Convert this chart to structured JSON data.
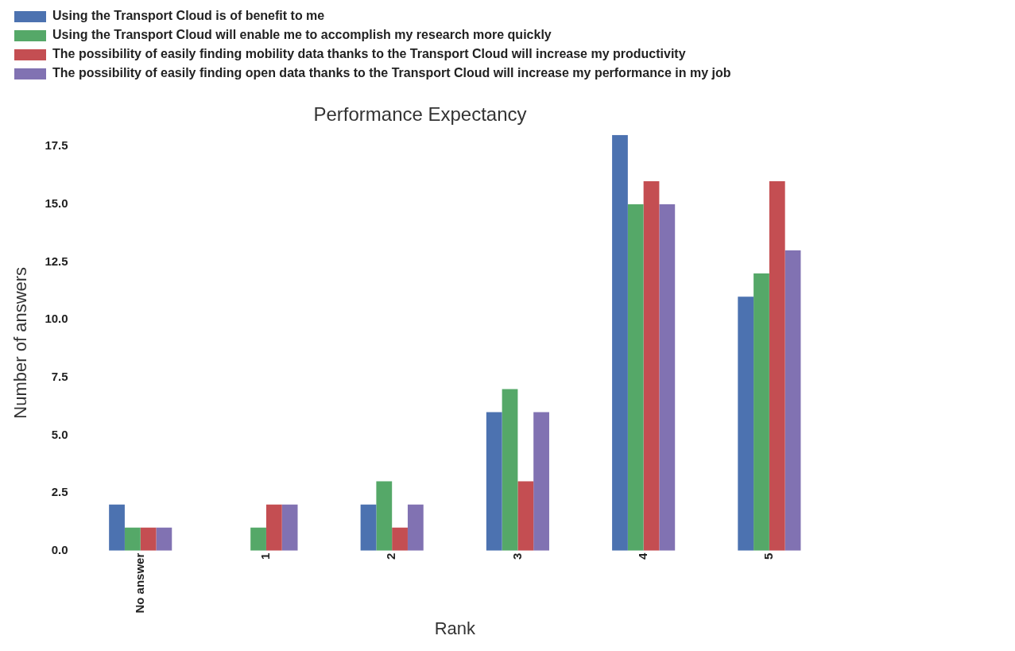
{
  "chart_data": {
    "type": "bar",
    "title": "Performance Expectancy",
    "xlabel": "Rank",
    "ylabel": "Number of answers",
    "categories": [
      "No answer",
      "1",
      "2",
      "3",
      "4",
      "5"
    ],
    "series": [
      {
        "name": "Using the Transport Cloud is of benefit to me",
        "color": "#4c72b0",
        "values": [
          2,
          0,
          2,
          6,
          18,
          11
        ]
      },
      {
        "name": "Using the Transport Cloud will enable me to accomplish my research more quickly",
        "color": "#55a868",
        "values": [
          1,
          1,
          3,
          7,
          15,
          12
        ]
      },
      {
        "name": "The possibility of easily finding mobility data thanks to the Transport Cloud will increase my productivity",
        "color": "#c44e52",
        "values": [
          1,
          2,
          1,
          3,
          16,
          16
        ]
      },
      {
        "name": "The possibility of easily finding open data thanks to the Transport Cloud will increase my performance in my job",
        "color": "#8172b2",
        "values": [
          1,
          2,
          2,
          6,
          15,
          13
        ]
      }
    ],
    "yticks": [
      {
        "value": 0,
        "label": "0.0"
      },
      {
        "value": 2.5,
        "label": "2.5"
      },
      {
        "value": 5,
        "label": "5.0"
      },
      {
        "value": 7.5,
        "label": "7.5"
      },
      {
        "value": 10,
        "label": "10.0"
      },
      {
        "value": 12.5,
        "label": "12.5"
      },
      {
        "value": 15,
        "label": "15.0"
      },
      {
        "value": 17.5,
        "label": "17.5"
      }
    ],
    "ylim": [
      0,
      18
    ],
    "grid": false,
    "legend": "top"
  }
}
